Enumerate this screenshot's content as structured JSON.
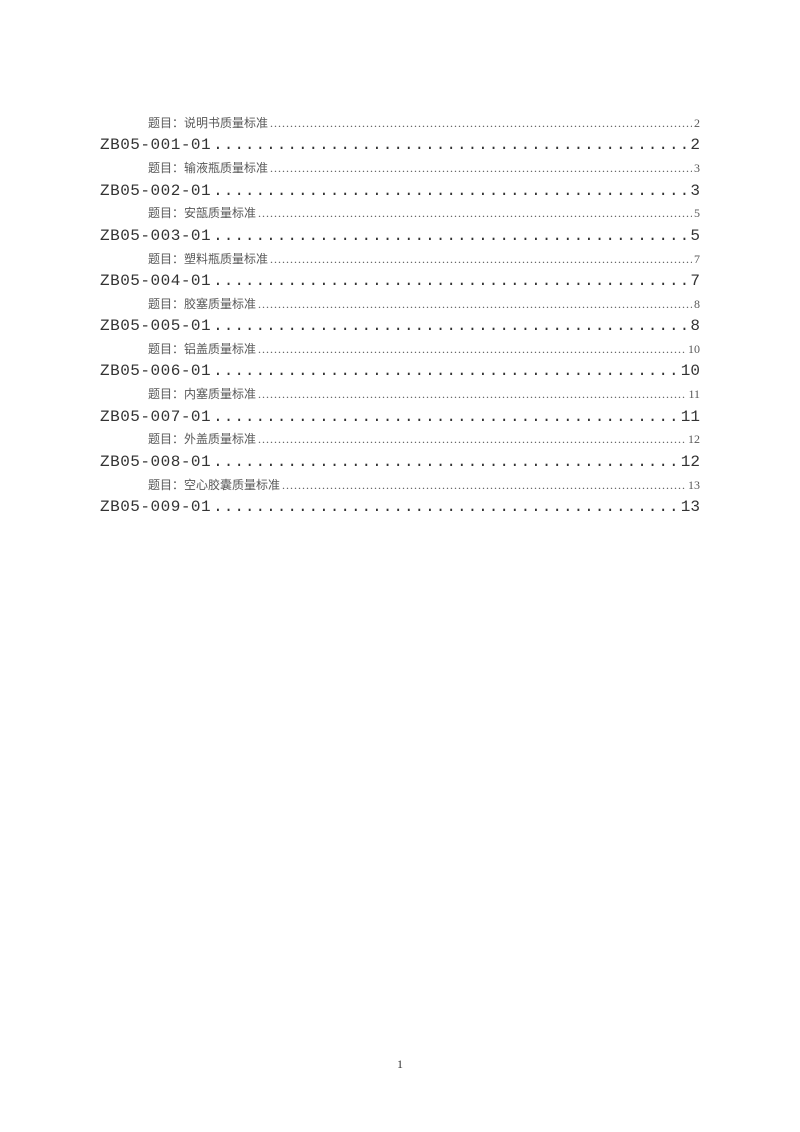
{
  "toc": [
    {
      "level": "sub",
      "label": "题目：说明书质量标准",
      "page": "2"
    },
    {
      "level": "main",
      "label": "ZB05-001-01",
      "page": "2"
    },
    {
      "level": "sub",
      "label": "题目：输液瓶质量标准",
      "page": "3"
    },
    {
      "level": "main",
      "label": "ZB05-002-01",
      "page": "3"
    },
    {
      "level": "sub",
      "label": "题目：安瓿质量标准",
      "page": "5"
    },
    {
      "level": "main",
      "label": "ZB05-003-01",
      "page": "5"
    },
    {
      "level": "sub",
      "label": "题目：塑料瓶质量标准",
      "page": "7"
    },
    {
      "level": "main",
      "label": "ZB05-004-01",
      "page": "7"
    },
    {
      "level": "sub",
      "label": "题目：胶塞质量标准",
      "page": "8"
    },
    {
      "level": "main",
      "label": "ZB05-005-01",
      "page": "8"
    },
    {
      "level": "sub",
      "label": "题目：铝盖质量标准",
      "page": "10"
    },
    {
      "level": "main",
      "label": "ZB05-006-01",
      "page": "10"
    },
    {
      "level": "sub",
      "label": "题目：内塞质量标准",
      "page": "11"
    },
    {
      "level": "main",
      "label": "ZB05-007-01",
      "page": "11"
    },
    {
      "level": "sub",
      "label": "题目：外盖质量标准",
      "page": "12"
    },
    {
      "level": "main",
      "label": "ZB05-008-01",
      "page": "12"
    },
    {
      "level": "sub",
      "label": "题目：空心胶囊质量标准",
      "page": "13"
    },
    {
      "level": "main",
      "label": "ZB05-009-01",
      "page": "13"
    }
  ],
  "footer_page": "1",
  "dot_fill": "................................................................................................................................................................................................................"
}
